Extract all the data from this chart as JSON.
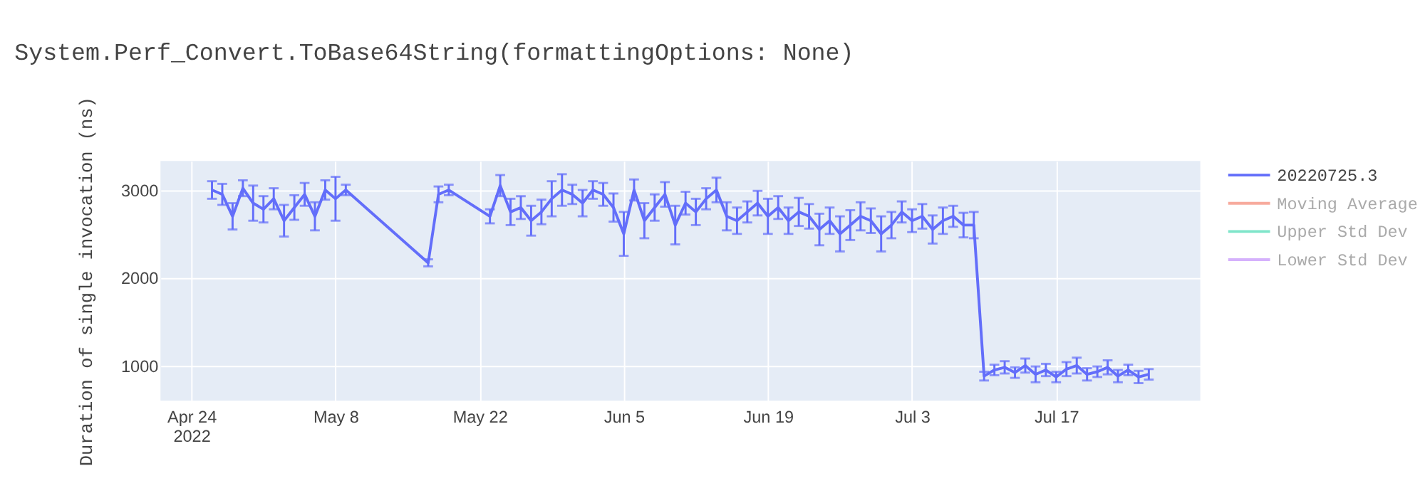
{
  "chart_data": {
    "type": "line",
    "title": "System.Perf_Convert.ToBase64String(formattingOptions: None)",
    "ylabel": "Duration of single invocation (ns)",
    "x": [
      "2022-04-26",
      "2022-04-27",
      "2022-04-28",
      "2022-04-29",
      "2022-04-30",
      "2022-05-01",
      "2022-05-02",
      "2022-05-03",
      "2022-05-04",
      "2022-05-05",
      "2022-05-06",
      "2022-05-07",
      "2022-05-08",
      "2022-05-09",
      "2022-05-17",
      "2022-05-18",
      "2022-05-19",
      "2022-05-23",
      "2022-05-24",
      "2022-05-25",
      "2022-05-26",
      "2022-05-27",
      "2022-05-28",
      "2022-05-29",
      "2022-05-30",
      "2022-05-31",
      "2022-06-01",
      "2022-06-02",
      "2022-06-03",
      "2022-06-04",
      "2022-06-05",
      "2022-06-06",
      "2022-06-07",
      "2022-06-08",
      "2022-06-09",
      "2022-06-10",
      "2022-06-11",
      "2022-06-12",
      "2022-06-13",
      "2022-06-14",
      "2022-06-15",
      "2022-06-16",
      "2022-06-17",
      "2022-06-18",
      "2022-06-19",
      "2022-06-20",
      "2022-06-21",
      "2022-06-22",
      "2022-06-23",
      "2022-06-24",
      "2022-06-25",
      "2022-06-26",
      "2022-06-27",
      "2022-06-28",
      "2022-06-29",
      "2022-06-30",
      "2022-07-01",
      "2022-07-02",
      "2022-07-03",
      "2022-07-04",
      "2022-07-05",
      "2022-07-06",
      "2022-07-07",
      "2022-07-08",
      "2022-07-09",
      "2022-07-10",
      "2022-07-11",
      "2022-07-12",
      "2022-07-13",
      "2022-07-14",
      "2022-07-15",
      "2022-07-16",
      "2022-07-17",
      "2022-07-18",
      "2022-07-19",
      "2022-07-20",
      "2022-07-21",
      "2022-07-22",
      "2022-07-23",
      "2022-07-24",
      "2022-07-25",
      "2022-07-26"
    ],
    "series": [
      {
        "name": "20220725.3",
        "color": "#636efa",
        "values": [
          3000,
          2950,
          2700,
          3020,
          2850,
          2780,
          2900,
          2650,
          2800,
          2950,
          2700,
          3000,
          2900,
          3000,
          2170,
          2950,
          3000,
          2700,
          3050,
          2750,
          2800,
          2650,
          2750,
          2900,
          3000,
          2950,
          2850,
          3000,
          2950,
          2800,
          2500,
          3000,
          2650,
          2800,
          2950,
          2600,
          2850,
          2750,
          2900,
          3000,
          2700,
          2650,
          2750,
          2850,
          2700,
          2800,
          2650,
          2750,
          2700,
          2550,
          2650,
          2500,
          2600,
          2700,
          2650,
          2500,
          2600,
          2750,
          2650,
          2700,
          2550,
          2650,
          2700,
          2600,
          2600,
          880,
          950,
          980,
          920,
          1000,
          900,
          950,
          870,
          960,
          1000,
          900,
          930,
          980,
          880,
          950,
          870,
          900
        ],
        "errors": [
          100,
          120,
          150,
          90,
          200,
          150,
          120,
          180,
          140,
          130,
          160,
          110,
          250,
          60,
          40,
          90,
          60,
          80,
          120,
          150,
          130,
          170,
          140,
          200,
          180,
          110,
          150,
          100,
          130,
          160,
          250,
          120,
          200,
          150,
          140,
          220,
          130,
          150,
          120,
          140,
          160,
          150,
          120,
          140,
          200,
          130,
          150,
          160,
          140,
          180,
          150,
          200,
          170,
          160,
          140,
          200,
          150,
          120,
          130,
          140,
          160,
          150,
          120,
          140,
          150,
          50,
          60,
          70,
          60,
          80,
          90,
          70,
          60,
          80,
          90,
          70,
          60,
          80,
          70,
          60,
          70,
          60
        ]
      },
      {
        "name": "Moving Average",
        "color": "#ef553b",
        "values": [
          null,
          null,
          null,
          null,
          null,
          null,
          null,
          null,
          null,
          null,
          null,
          null,
          null,
          null,
          null,
          null,
          null,
          null,
          null,
          null,
          null,
          null,
          null,
          null,
          null,
          null,
          null,
          null,
          null,
          null,
          null,
          null,
          null,
          null,
          null,
          null,
          null,
          null,
          null,
          null,
          null,
          null,
          null,
          null,
          null,
          null,
          null,
          null,
          null,
          null,
          null,
          null,
          null,
          null,
          null,
          null,
          null,
          null,
          null,
          null,
          null,
          null,
          null,
          null,
          null,
          null,
          null,
          null,
          null,
          null,
          null,
          null,
          null,
          null,
          null,
          null,
          null,
          null,
          null,
          null,
          null,
          null
        ]
      },
      {
        "name": "Upper Std Dev",
        "color": "#00cc96",
        "values": [
          null,
          null,
          null,
          null,
          null,
          null,
          null,
          null,
          null,
          null,
          null,
          null,
          null,
          null,
          null,
          null,
          null,
          null,
          null,
          null,
          null,
          null,
          null,
          null,
          null,
          null,
          null,
          null,
          null,
          null,
          null,
          null,
          null,
          null,
          null,
          null,
          null,
          null,
          null,
          null,
          null,
          null,
          null,
          null,
          null,
          null,
          null,
          null,
          null,
          null,
          null,
          null,
          null,
          null,
          null,
          null,
          null,
          null,
          null,
          null,
          null,
          null,
          null,
          null,
          null,
          null,
          null,
          null,
          null,
          null,
          null,
          null,
          null,
          null,
          null,
          null,
          null,
          null,
          null,
          null,
          null,
          null
        ]
      },
      {
        "name": "Lower Std Dev",
        "color": "#ab63fa",
        "values": [
          null,
          null,
          null,
          null,
          null,
          null,
          null,
          null,
          null,
          null,
          null,
          null,
          null,
          null,
          null,
          null,
          null,
          null,
          null,
          null,
          null,
          null,
          null,
          null,
          null,
          null,
          null,
          null,
          null,
          null,
          null,
          null,
          null,
          null,
          null,
          null,
          null,
          null,
          null,
          null,
          null,
          null,
          null,
          null,
          null,
          null,
          null,
          null,
          null,
          null,
          null,
          null,
          null,
          null,
          null,
          null,
          null,
          null,
          null,
          null,
          null,
          null,
          null,
          null,
          null,
          null,
          null,
          null,
          null,
          null,
          null,
          null,
          null,
          null,
          null,
          null,
          null,
          null,
          null,
          null,
          null,
          null
        ]
      }
    ],
    "xlim": [
      "2022-04-21",
      "2022-07-31"
    ],
    "xticks": [
      {
        "value": "2022-04-24",
        "label": "Apr 24\n2022"
      },
      {
        "value": "2022-05-08",
        "label": "May 8"
      },
      {
        "value": "2022-05-22",
        "label": "May 22"
      },
      {
        "value": "2022-06-05",
        "label": "Jun 5"
      },
      {
        "value": "2022-06-19",
        "label": "Jun 19"
      },
      {
        "value": "2022-07-03",
        "label": "Jul 3"
      },
      {
        "value": "2022-07-17",
        "label": "Jul 17"
      }
    ],
    "ylim": [
      600,
      3330
    ],
    "yticks": [
      1000,
      2000,
      3000
    ],
    "grid": true,
    "legend": "right",
    "marker": "none",
    "line_style": "solid"
  }
}
